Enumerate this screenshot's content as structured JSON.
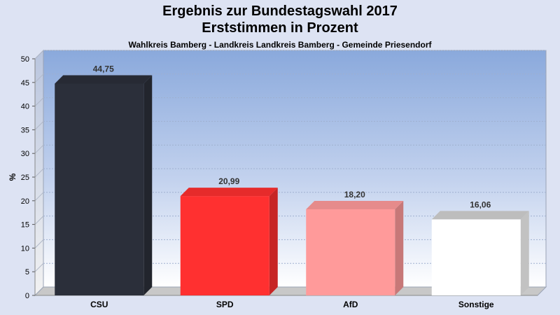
{
  "chart_data": {
    "type": "bar",
    "title": "Ergebnis zur Bundestagswahl 2017",
    "subtitle": "Erststimmen in Prozent",
    "caption": "Wahlkreis Bamberg - Landkreis Landkreis Bamberg - Gemeinde Priesendorf",
    "ylabel": "%",
    "xlabel": "",
    "ylim": [
      0,
      50
    ],
    "yticks": [
      0,
      5,
      10,
      15,
      20,
      25,
      30,
      35,
      40,
      45,
      50
    ],
    "grid": true,
    "categories": [
      "CSU",
      "SPD",
      "AfD",
      "Sonstige"
    ],
    "values": [
      44.75,
      20.99,
      18.2,
      16.06
    ],
    "value_labels": [
      "44,75",
      "20,99",
      "18,20",
      "16,06"
    ],
    "colors": [
      "#2b2f3a",
      "#ff3030",
      "#ff9a9a",
      "#ffffff"
    ]
  }
}
